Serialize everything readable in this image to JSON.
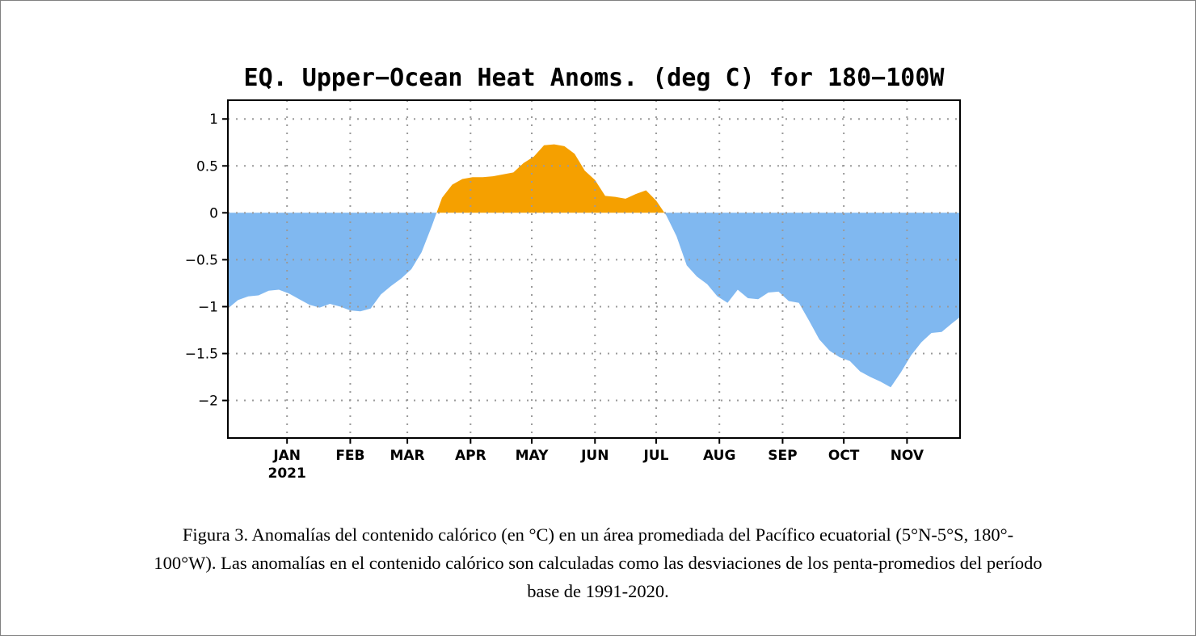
{
  "chart_data": {
    "type": "area",
    "title": "EQ. Upper−Ocean Heat Anoms. (deg C) for 180−100W",
    "xlabel": "",
    "ylabel": "",
    "ylim": [
      -2.4,
      1.2
    ],
    "yticks": [
      1,
      0.5,
      0,
      -0.5,
      -1,
      -1.5,
      -2
    ],
    "ytick_labels": [
      "1",
      "0.5",
      "0",
      "−0.5",
      "−1",
      "−1.5",
      "−2"
    ],
    "xlim": [
      "2020-12-03",
      "2021-11-27"
    ],
    "xticks": [
      "2021-01-01",
      "2021-02-01",
      "2021-03-01",
      "2021-04-01",
      "2021-05-01",
      "2021-06-01",
      "2021-07-01",
      "2021-08-01",
      "2021-09-01",
      "2021-10-01",
      "2021-11-01"
    ],
    "xtick_labels": [
      "JAN",
      "FEB",
      "MAR",
      "APR",
      "MAY",
      "JUN",
      "JUL",
      "AUG",
      "SEP",
      "OCT",
      "NOV"
    ],
    "year_label": "2021",
    "grid": true,
    "colors": {
      "positive": "#f5a000",
      "negative": "#80b8f0",
      "grid": "#9a9a9a",
      "axis": "#000000"
    },
    "series": [
      {
        "x": [
          "2020-12-03",
          "2020-12-08",
          "2020-12-13",
          "2020-12-18",
          "2020-12-23",
          "2020-12-28",
          "2021-01-02",
          "2021-01-07",
          "2021-01-12",
          "2021-01-17",
          "2021-01-22",
          "2021-01-27",
          "2021-02-01",
          "2021-02-06",
          "2021-02-11",
          "2021-02-16",
          "2021-02-21",
          "2021-02-26",
          "2021-03-03",
          "2021-03-08",
          "2021-03-13",
          "2021-03-18",
          "2021-03-23",
          "2021-03-28",
          "2021-04-02",
          "2021-04-07",
          "2021-04-12",
          "2021-04-17",
          "2021-04-22",
          "2021-04-27",
          "2021-05-02",
          "2021-05-07",
          "2021-05-12",
          "2021-05-17",
          "2021-05-22",
          "2021-05-27",
          "2021-06-01",
          "2021-06-06",
          "2021-06-11",
          "2021-06-16",
          "2021-06-21",
          "2021-06-26",
          "2021-07-01",
          "2021-07-06",
          "2021-07-11",
          "2021-07-16",
          "2021-07-21",
          "2021-07-26",
          "2021-07-31",
          "2021-08-05",
          "2021-08-10",
          "2021-08-15",
          "2021-08-20",
          "2021-08-25",
          "2021-08-30",
          "2021-09-04",
          "2021-09-09",
          "2021-09-14",
          "2021-09-19",
          "2021-09-24",
          "2021-09-29",
          "2021-10-04",
          "2021-10-09",
          "2021-10-14",
          "2021-10-19",
          "2021-10-24",
          "2021-10-29",
          "2021-11-03",
          "2021-11-08",
          "2021-11-13",
          "2021-11-18",
          "2021-11-23",
          "2021-11-27"
        ],
        "y": [
          -1.02,
          -0.93,
          -0.89,
          -0.88,
          -0.83,
          -0.82,
          -0.86,
          -0.92,
          -0.98,
          -1.01,
          -0.97,
          -1.0,
          -1.04,
          -1.05,
          -1.02,
          -0.87,
          -0.78,
          -0.7,
          -0.6,
          -0.42,
          -0.14,
          0.16,
          0.3,
          0.36,
          0.38,
          0.38,
          0.39,
          0.41,
          0.43,
          0.53,
          0.6,
          0.72,
          0.73,
          0.71,
          0.63,
          0.45,
          0.35,
          0.18,
          0.17,
          0.15,
          0.2,
          0.24,
          0.13,
          -0.03,
          -0.25,
          -0.56,
          -0.68,
          -0.76,
          -0.89,
          -0.96,
          -0.82,
          -0.91,
          -0.92,
          -0.85,
          -0.84,
          -0.94,
          -0.96,
          -1.15,
          -1.35,
          -1.47,
          -1.54,
          -1.58,
          -1.69,
          -1.75,
          -1.8,
          -1.86,
          -1.7,
          -1.52,
          -1.38,
          -1.28,
          -1.27,
          -1.18,
          -1.11
        ]
      }
    ]
  },
  "caption": {
    "line1": "Figura 3. Anomalías del contenido calórico (en °C) en un área promediada del Pacífico ecuatorial (5°N-5°S, 180°-",
    "line2": "100°W). Las anomalías en el contenido calórico son calculadas como las desviaciones de los penta-promedios del período",
    "line3": "base de 1991-2020."
  }
}
